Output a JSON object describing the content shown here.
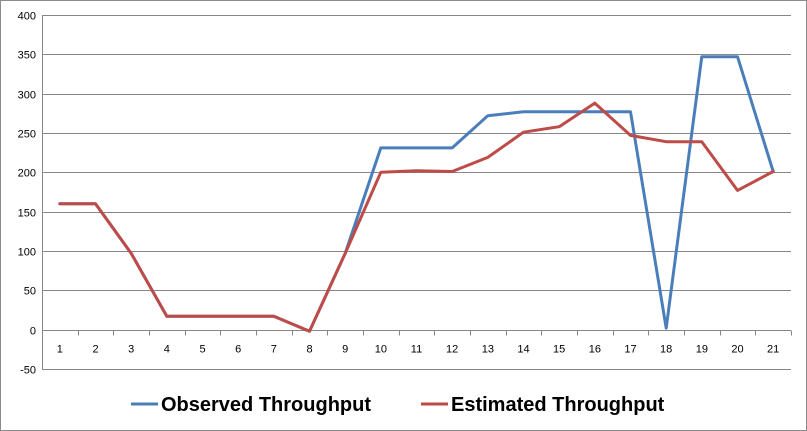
{
  "chart_data": {
    "type": "line",
    "x": [
      "1",
      "2",
      "3",
      "4",
      "5",
      "6",
      "7",
      "8",
      "9",
      "10",
      "11",
      "12",
      "13",
      "14",
      "15",
      "16",
      "17",
      "18",
      "19",
      "20",
      "21"
    ],
    "ylim": [
      -50,
      400
    ],
    "yticks": [
      -50,
      0,
      50,
      100,
      150,
      200,
      250,
      300,
      350,
      400
    ],
    "grid": true,
    "legend_position": "bottom",
    "series": [
      {
        "name": "Observed Throughput",
        "color": "#4a7ebb",
        "values": [
          160,
          160,
          97,
          17,
          17,
          17,
          17,
          -2,
          97,
          231,
          231,
          231,
          272,
          277,
          277,
          277,
          277,
          2,
          347,
          347,
          201
        ]
      },
      {
        "name": "Estimated Throughput",
        "color": "#be4b48",
        "values": [
          160,
          160,
          97,
          17,
          17,
          17,
          17,
          -2,
          97,
          200,
          202,
          201,
          219,
          251,
          258,
          288,
          247,
          239,
          239,
          177,
          201
        ]
      }
    ]
  }
}
